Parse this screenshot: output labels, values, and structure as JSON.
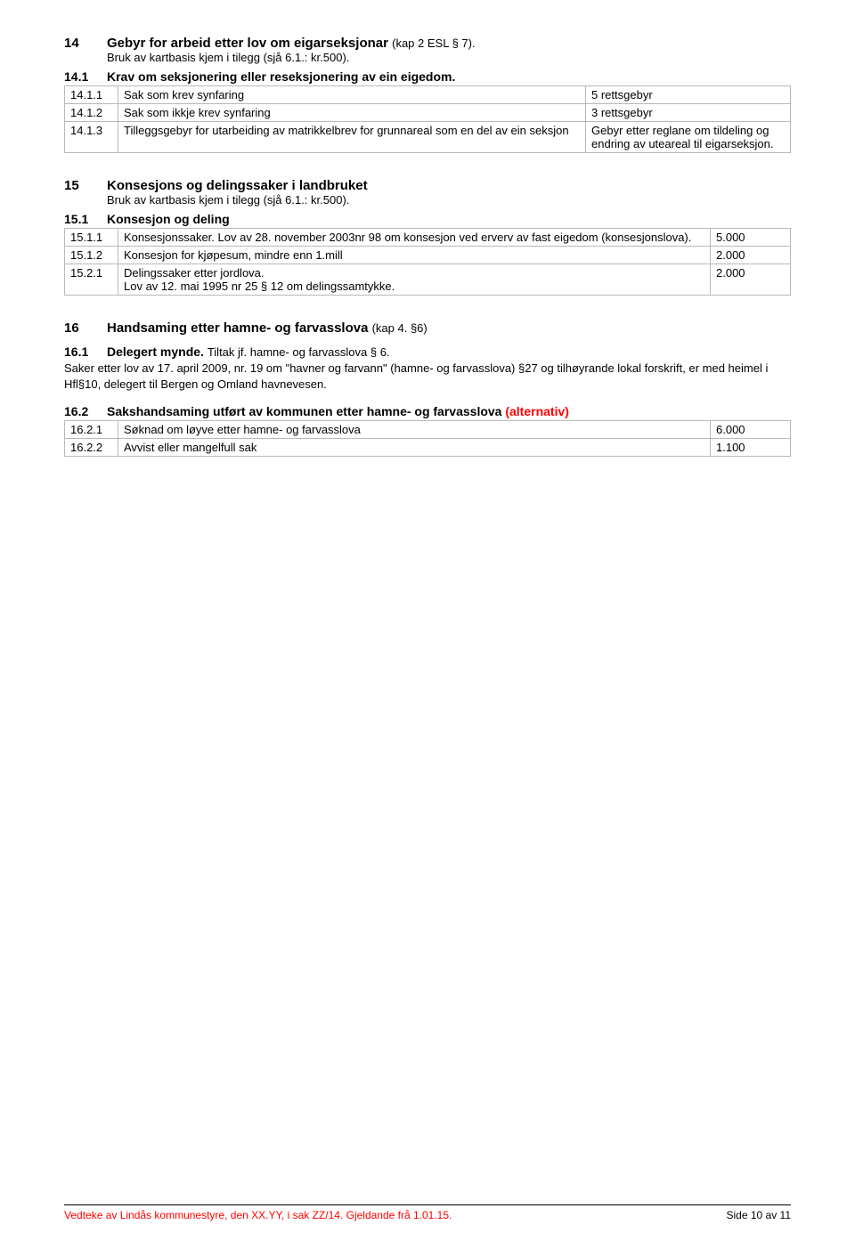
{
  "s14": {
    "num": "14",
    "title": "Gebyr for arbeid etter lov om eigarseksjonar ",
    "title_light": "(kap 2 ESL § 7).",
    "sub_indent": "Bruk av kartbasis kjem i tilegg (sjå 6.1.: kr.500).",
    "h141_num": "14.1",
    "h141_title": "Krav om seksjonering eller reseksjonering av ein eigedom.",
    "rows": [
      {
        "a": "14.1.1",
        "b": "Sak som krev synfaring",
        "c": "5 rettsgebyr"
      },
      {
        "a": "14.1.2",
        "b": "Sak som ikkje krev synfaring",
        "c": "3 rettsgebyr"
      },
      {
        "a": "14.1.3",
        "b": "Tilleggsgebyr for utarbeiding av matrikkelbrev for grunnareal som en del av ein seksjon",
        "c": "Gebyr etter reglane om tildeling og endring av uteareal til eigarseksjon."
      }
    ]
  },
  "s15": {
    "num": "15",
    "title": "Konsesjons og delingssaker i landbruket",
    "sub_indent": "Bruk av kartbasis kjem i tilegg (sjå 6.1.: kr.500).",
    "h151_num": "15.1",
    "h151_title": "Konsesjon og deling",
    "rows": [
      {
        "a": "15.1.1",
        "b": "Konsesjonssaker. ",
        "b2": "Lov av 28. november 2003nr 98 om konsesjon ved erverv av fast eigedom (konsesjonslova).",
        "c": "5.000"
      },
      {
        "a": "15.1.2",
        "b": "Konsesjon for kjøpesum, mindre enn 1.mill",
        "c": "2.000"
      },
      {
        "a": "15.2.1",
        "b": "Delingssaker etter jordlova.",
        "b2": "Lov av 12. mai 1995 nr 25 § 12 om delingssamtykke.",
        "c": "2.000"
      }
    ]
  },
  "s16": {
    "num": "16",
    "title": "Handsaming etter hamne- og farvasslova ",
    "title_light": "(kap 4. §6)",
    "h161_num": "16.1",
    "h161_title": "Delegert mynde. ",
    "h161_light": "Tiltak jf. hamne- og farvasslova § 6.",
    "p161": "Saker etter lov av 17. april 2009, nr. 19 om \"havner og farvann\" (hamne- og farvasslova) §27 og tilhøyrande lokal forskrift, er med heimel i Hfl§10, delegert til Bergen og Omland havnevesen.",
    "h162_num": "16.2",
    "h162_title": "Sakshandsaming utført av kommunen etter hamne- og farvasslova ",
    "h162_red": "(alternativ)",
    "rows": [
      {
        "a": "16.2.1",
        "b": "Søknad om løyve etter hamne- og farvasslova",
        "c": "6.000"
      },
      {
        "a": "16.2.2",
        "b": "Avvist eller mangelfull sak",
        "c": "1.100"
      }
    ]
  },
  "footer": {
    "left": "Vedteke av Lindås kommunestyre, den XX.YY, i sak ZZ/14. Gjeldande frå 1.01.15.",
    "right": "Side 10 av 11"
  }
}
